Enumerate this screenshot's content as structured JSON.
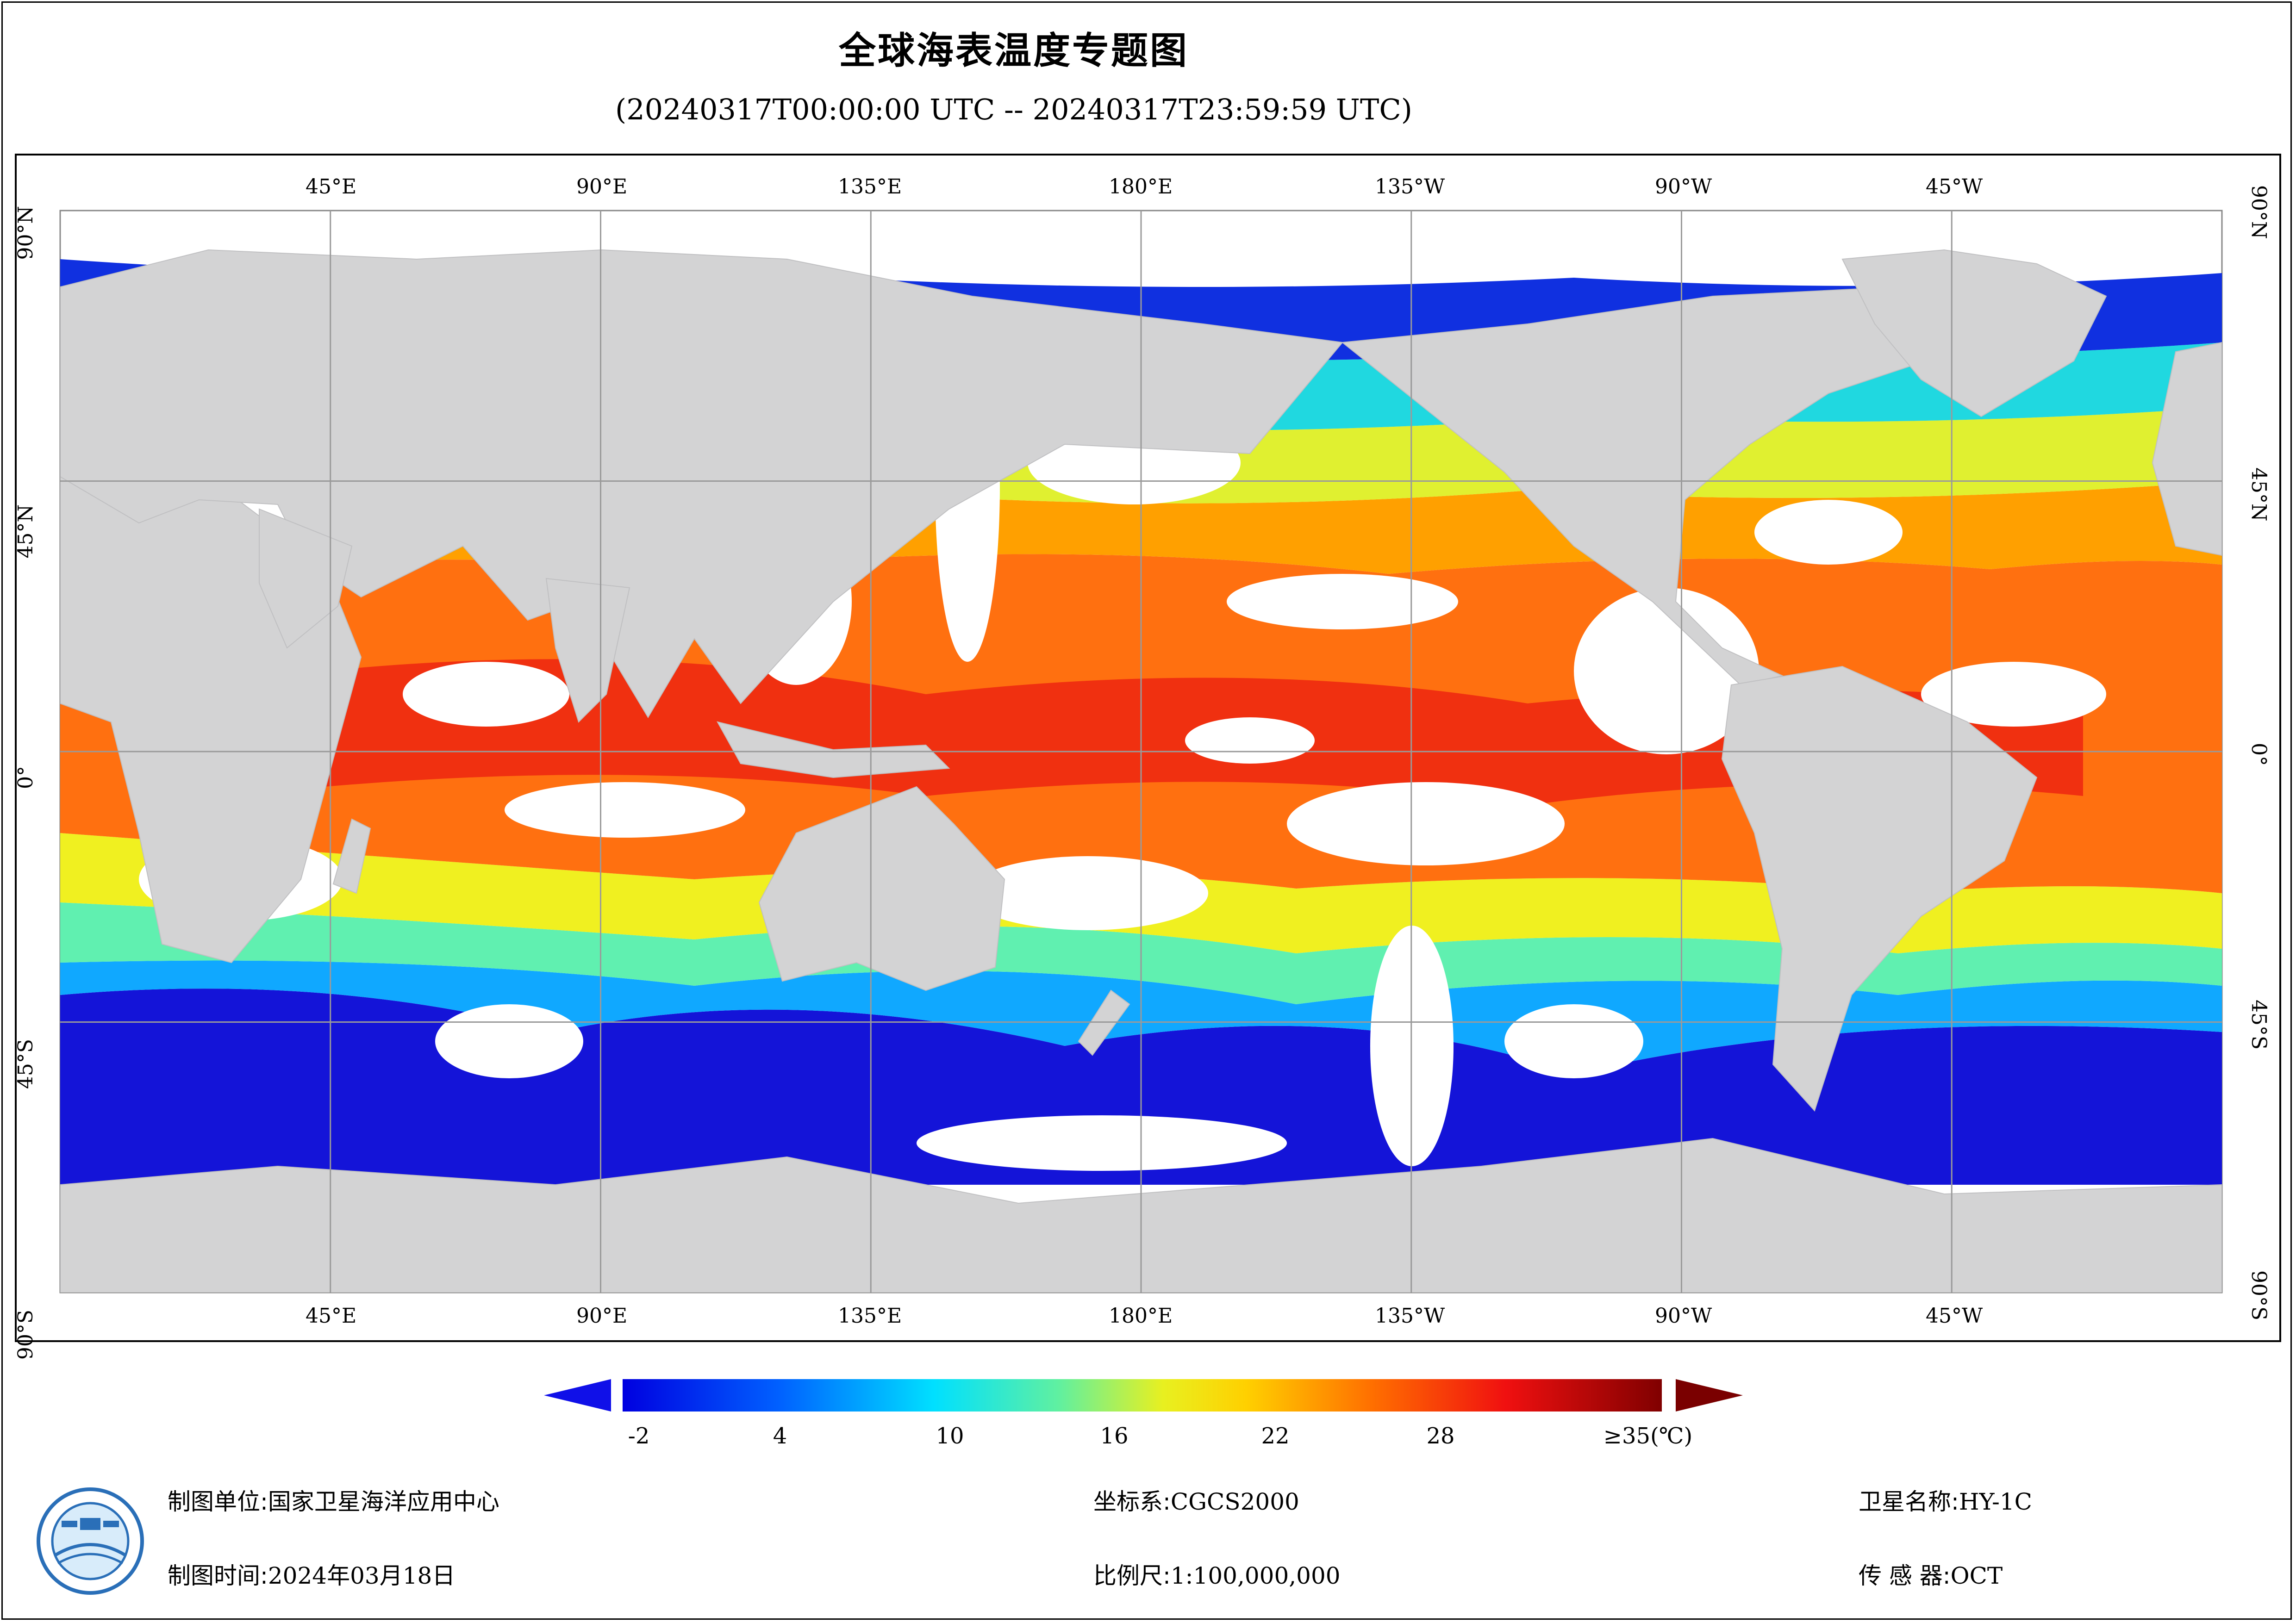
{
  "header": {
    "title": "全球海表温度专题图",
    "time_range": "(20240317T00:00:00 UTC -- 20240317T23:59:59 UTC)"
  },
  "map": {
    "lon_labels": [
      "45°E",
      "90°E",
      "135°E",
      "180°E",
      "135°W",
      "90°W",
      "45°W"
    ],
    "lat_labels": [
      "90°N",
      "45°N",
      "0°",
      "45°S",
      "90°S"
    ],
    "colors": {
      "land": "#d3d3d4",
      "no_data": "#ffffff",
      "grid": "#9a9a9a"
    }
  },
  "colorbar": {
    "tick_labels": [
      "-2",
      "4",
      "10",
      "16",
      "22",
      "28",
      "≥35(℃)"
    ],
    "min": -2,
    "max": 35,
    "colors": [
      "#0000e0",
      "#0060ff",
      "#00c8ff",
      "#40f0c8",
      "#c0f040",
      "#ffff00",
      "#ffb000",
      "#ff5000",
      "#e00000",
      "#800000"
    ],
    "under_color": "#1010e8",
    "over_color": "#7a0000"
  },
  "footer": {
    "producer_label": "制图单位:",
    "producer_value": "国家卫星海洋应用中心",
    "date_label": "制图时间:",
    "date_value": "2024年03月18日",
    "crs_label": "坐标系:",
    "crs_value": "CGCS2000",
    "scale_label": "比例尺:",
    "scale_value": "1:100,000,000",
    "satellite_label": "卫星名称:",
    "satellite_value": "HY-1C",
    "sensor_label": "传 感 器:",
    "sensor_value": "OCT"
  }
}
